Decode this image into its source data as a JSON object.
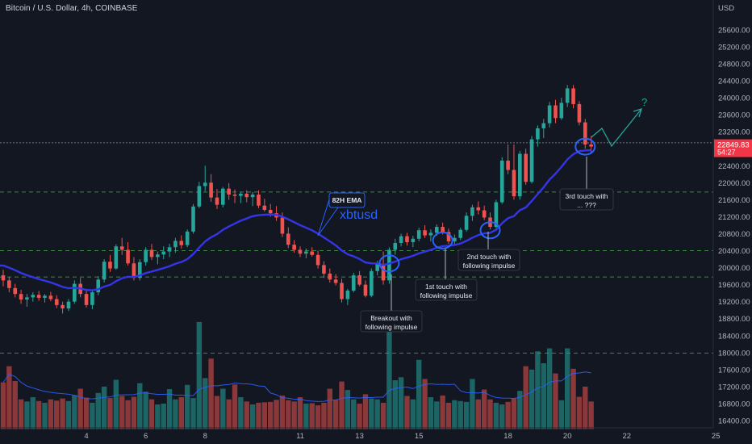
{
  "header": {
    "symbol_title": "Bitcoin / U.S. Dollar, 4h, COINBASE",
    "currency": "USD"
  },
  "price_tag": {
    "price": "22849.83",
    "countdown": "54:27"
  },
  "colors": {
    "background": "#131722",
    "bull": "#26a69a",
    "bear": "#ef5350",
    "ema": "#3535e8",
    "volume_ma": "#2962ff",
    "level_line": "#4caf50",
    "price_tag": "#f23645",
    "annotation_box": "#131722",
    "forecast_arrow": "#26a69a"
  },
  "chart_data": {
    "type": "candlestick",
    "title": "Bitcoin / U.S. Dollar, 4h, COINBASE",
    "y_unit": "USD",
    "ylim": [
      16200,
      26000
    ],
    "y_ticks": [
      16400,
      16800,
      17200,
      17600,
      18000,
      18400,
      18800,
      19200,
      19600,
      20000,
      20400,
      20800,
      21200,
      21600,
      22000,
      22400,
      22800,
      23200,
      23600,
      24000,
      24400,
      24800,
      25200,
      25600
    ],
    "x_ticks": [
      "4",
      "6",
      "8",
      "11",
      "13",
      "15",
      "18",
      "20",
      "22",
      "25"
    ],
    "x_tick_bar_index": [
      14,
      24,
      34,
      50,
      60,
      70,
      85,
      95,
      105,
      120
    ],
    "last_price": 22849.83,
    "horizontal_levels": [
      22940,
      21780,
      20400,
      19780,
      17990
    ],
    "ohlc": [
      [
        19820,
        19950,
        19560,
        19700
      ],
      [
        19700,
        19780,
        19420,
        19520
      ],
      [
        19520,
        19620,
        19300,
        19380
      ],
      [
        19380,
        19480,
        19150,
        19250
      ],
      [
        19250,
        19380,
        19080,
        19300
      ],
      [
        19300,
        19420,
        19200,
        19360
      ],
      [
        19360,
        19450,
        19220,
        19290
      ],
      [
        19290,
        19380,
        19180,
        19340
      ],
      [
        19340,
        19430,
        19210,
        19260
      ],
      [
        19260,
        19350,
        19050,
        19120
      ],
      [
        19120,
        19200,
        18920,
        19040
      ],
      [
        19040,
        19260,
        18980,
        19200
      ],
      [
        19200,
        19700,
        19150,
        19620
      ],
      [
        19620,
        19760,
        19300,
        19380
      ],
      [
        19380,
        19500,
        19060,
        19120
      ],
      [
        19120,
        19480,
        19020,
        19420
      ],
      [
        19420,
        19800,
        19350,
        19720
      ],
      [
        19720,
        20200,
        19650,
        20140
      ],
      [
        20140,
        20300,
        19900,
        19980
      ],
      [
        19980,
        20550,
        19950,
        20500
      ],
      [
        20500,
        20700,
        20300,
        20420
      ],
      [
        20420,
        20600,
        20050,
        20100
      ],
      [
        20100,
        20250,
        19700,
        19760
      ],
      [
        19760,
        20200,
        19700,
        20130
      ],
      [
        20130,
        20480,
        20050,
        20420
      ],
      [
        20420,
        20560,
        20180,
        20250
      ],
      [
        20250,
        20380,
        20080,
        20310
      ],
      [
        20310,
        20500,
        20200,
        20380
      ],
      [
        20380,
        20560,
        20250,
        20480
      ],
      [
        20480,
        20700,
        20350,
        20630
      ],
      [
        20630,
        20760,
        20450,
        20530
      ],
      [
        20530,
        20900,
        20480,
        20850
      ],
      [
        20850,
        21500,
        20800,
        21440
      ],
      [
        21440,
        22020,
        21400,
        21920
      ],
      [
        21920,
        22400,
        21800,
        22000
      ],
      [
        22000,
        22200,
        21550,
        21650
      ],
      [
        21650,
        21850,
        21380,
        21480
      ],
      [
        21480,
        21900,
        21420,
        21860
      ],
      [
        21860,
        21990,
        21600,
        21720
      ],
      [
        21720,
        21840,
        21520,
        21690
      ],
      [
        21690,
        21780,
        21520,
        21740
      ],
      [
        21740,
        21820,
        21540,
        21660
      ],
      [
        21660,
        21780,
        21450,
        21720
      ],
      [
        21720,
        21820,
        21400,
        21460
      ],
      [
        21460,
        21620,
        21320,
        21360
      ],
      [
        21360,
        21500,
        21200,
        21280
      ],
      [
        21280,
        21450,
        21100,
        21180
      ],
      [
        21180,
        21300,
        20720,
        20800
      ],
      [
        20800,
        20950,
        20460,
        20540
      ],
      [
        20540,
        20650,
        20350,
        20420
      ],
      [
        20420,
        20500,
        20250,
        20330
      ],
      [
        20330,
        20450,
        20220,
        20380
      ],
      [
        20380,
        20480,
        20260,
        20300
      ],
      [
        20300,
        20400,
        19980,
        20060
      ],
      [
        20060,
        20150,
        19760,
        19860
      ],
      [
        19860,
        19980,
        19650,
        19720
      ],
      [
        19720,
        19850,
        19580,
        19640
      ],
      [
        19640,
        19740,
        19180,
        19260
      ],
      [
        19260,
        19500,
        19120,
        19460
      ],
      [
        19460,
        19880,
        19420,
        19820
      ],
      [
        19820,
        19920,
        19560,
        19600
      ],
      [
        19600,
        19700,
        19300,
        19340
      ],
      [
        19340,
        19980,
        19300,
        19920
      ],
      [
        19920,
        20160,
        19820,
        20080
      ],
      [
        20080,
        20380,
        19600,
        19700
      ],
      [
        19700,
        20480,
        19620,
        20420
      ],
      [
        20420,
        20680,
        20300,
        20580
      ],
      [
        20580,
        20800,
        20500,
        20740
      ],
      [
        20740,
        20820,
        20520,
        20600
      ],
      [
        20600,
        20750,
        20480,
        20680
      ],
      [
        20680,
        20940,
        20620,
        20880
      ],
      [
        20880,
        21000,
        20700,
        20760
      ],
      [
        20760,
        20900,
        20620,
        20820
      ],
      [
        20820,
        21020,
        20750,
        20960
      ],
      [
        20960,
        21060,
        20780,
        20840
      ],
      [
        20840,
        20920,
        20560,
        20620
      ],
      [
        20620,
        20780,
        20520,
        20700
      ],
      [
        20700,
        20940,
        20650,
        20890
      ],
      [
        20890,
        21300,
        20850,
        21220
      ],
      [
        21220,
        21480,
        21100,
        21420
      ],
      [
        21420,
        21560,
        21250,
        21350
      ],
      [
        21350,
        21460,
        21120,
        21180
      ],
      [
        21180,
        21300,
        20900,
        20960
      ],
      [
        20960,
        21600,
        20920,
        21540
      ],
      [
        21540,
        22600,
        21500,
        22520
      ],
      [
        22520,
        22900,
        22200,
        22300
      ],
      [
        22300,
        22900,
        21600,
        21680
      ],
      [
        21680,
        22750,
        21600,
        22680
      ],
      [
        22680,
        22800,
        21950,
        22020
      ],
      [
        22020,
        23100,
        21980,
        23020
      ],
      [
        23020,
        23350,
        22850,
        23280
      ],
      [
        23280,
        23500,
        23050,
        23400
      ],
      [
        23400,
        23900,
        23300,
        23820
      ],
      [
        23820,
        23950,
        23400,
        23520
      ],
      [
        23520,
        24000,
        23480,
        23880
      ],
      [
        23880,
        24300,
        23780,
        24220
      ],
      [
        24220,
        24300,
        23750,
        23850
      ],
      [
        23850,
        23920,
        23350,
        23420
      ],
      [
        23420,
        23500,
        22800,
        22900
      ],
      [
        22900,
        23100,
        22700,
        22850
      ]
    ],
    "volume": [
      17300,
      17680,
      17330,
      16900,
      16850,
      16950,
      16860,
      16820,
      16900,
      16870,
      16920,
      16860,
      17000,
      17150,
      16940,
      16820,
      17050,
      17200,
      16930,
      17360,
      16980,
      16880,
      16960,
      17280,
      17080,
      16900,
      16780,
      16800,
      17140,
      16900,
      16950,
      17240,
      16930,
      18720,
      17400,
      17860,
      16980,
      17150,
      16900,
      17250,
      16950,
      16850,
      16780,
      16820,
      16830,
      16840,
      16890,
      16990,
      16880,
      16850,
      16950,
      16800,
      16810,
      16760,
      16820,
      17150,
      16890,
      17320,
      17120,
      16900,
      16800,
      17020,
      16920,
      16900,
      16820,
      18700,
      17350,
      17420,
      16980,
      16900,
      17830,
      17380,
      16950,
      16850,
      16990,
      16820,
      16880,
      16860,
      16840,
      17380,
      16900,
      17130,
      16900,
      16820,
      16780,
      16840,
      16920,
      17100,
      17680,
      17600,
      18030,
      17750,
      18100,
      17510,
      16880,
      18100,
      17620,
      16960,
      17200,
      16850
    ],
    "ema_period_label": "82H EMA"
  },
  "annotations": {
    "ema_label": "82H EMA",
    "pair_label": "xbtusd",
    "breakout": [
      "Breakout with",
      "following impulse"
    ],
    "touch1": [
      "1st touch with",
      "following impulse"
    ],
    "touch2": [
      "2nd touch with",
      "following impulse"
    ],
    "touch3": [
      "3rd touch with",
      "... ???"
    ],
    "question": "?"
  }
}
